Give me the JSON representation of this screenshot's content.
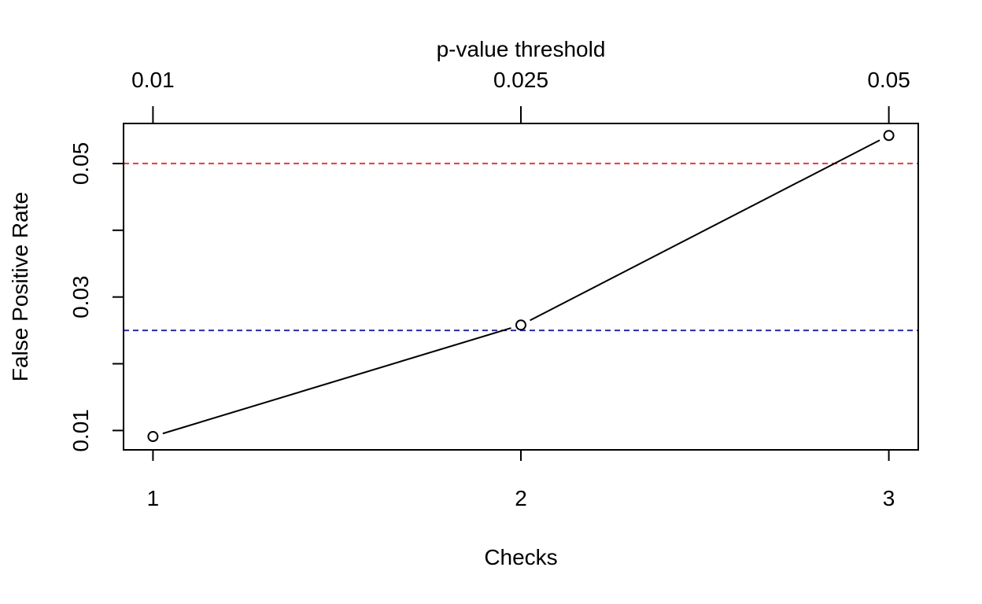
{
  "chart_data": {
    "type": "line",
    "title": "",
    "xlabel": "Checks",
    "ylabel": "False Positive Rate",
    "top_axis_label": "p-value threshold",
    "x": [
      1,
      2,
      3
    ],
    "x_tick_labels": [
      "1",
      "2",
      "3"
    ],
    "top_tick_labels": [
      "0.01",
      "0.025",
      "0.05"
    ],
    "y_ticks": [
      0.01,
      0.02,
      0.03,
      0.04,
      0.05
    ],
    "y_tick_labels": [
      "0.01",
      "",
      "0.03",
      "",
      "0.05"
    ],
    "xlim": [
      0.92,
      3.08
    ],
    "ylim": [
      0.0071,
      0.056
    ],
    "series": [
      {
        "values": [
          0.0091,
          0.0258,
          0.0542
        ],
        "color": "#000000",
        "marker": "open-circle"
      }
    ],
    "reference_lines": [
      {
        "y": 0.05,
        "color": "#e8383d",
        "style": "dashed"
      },
      {
        "y": 0.025,
        "color": "#2a2aaa",
        "style": "dashed"
      }
    ],
    "grid": false,
    "legend": "none"
  }
}
